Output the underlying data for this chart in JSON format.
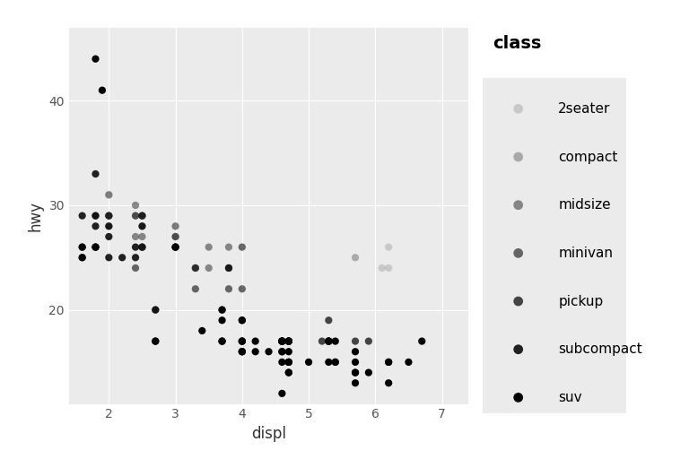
{
  "title": "class",
  "xlabel": "displ",
  "ylabel": "hwy",
  "plot_bg_color": "#EBEBEB",
  "fig_bg_color": "#FFFFFF",
  "legend_bg": "#EBEBEB",
  "classes": [
    "2seater",
    "compact",
    "midsize",
    "minivan",
    "pickup",
    "subcompact",
    "suv"
  ],
  "alpha_values": [
    0.15,
    0.28,
    0.43,
    0.57,
    0.71,
    0.86,
    1.0
  ],
  "point_color": "#000000",
  "point_size": 35,
  "xlim": [
    1.4,
    7.4
  ],
  "ylim": [
    11,
    47
  ],
  "xticks": [
    2,
    3,
    4,
    5,
    6,
    7
  ],
  "yticks": [
    20,
    30,
    40
  ],
  "data": {
    "2seater": {
      "displ": [
        5.7,
        5.7,
        6.1,
        6.2,
        6.2
      ],
      "hwy": [
        25,
        25,
        24,
        24,
        26
      ]
    },
    "compact": {
      "displ": [
        1.8,
        1.8,
        2.0,
        2.0,
        2.0,
        2.0,
        2.0,
        2.0,
        2.0,
        2.0,
        2.0,
        2.5,
        2.5,
        2.5,
        2.5,
        3.0,
        3.0,
        3.0
      ],
      "hwy": [
        29,
        29,
        31,
        29,
        28,
        29,
        29,
        29,
        29,
        31,
        29,
        28,
        29,
        26,
        26,
        28,
        26,
        28
      ]
    },
    "midsize": {
      "displ": [
        2.4,
        2.4,
        2.4,
        2.4,
        2.5,
        2.5,
        2.5,
        2.5,
        2.5,
        2.5,
        2.5,
        3.0,
        3.0,
        3.0,
        3.0,
        3.5,
        3.5,
        3.8,
        3.8
      ],
      "hwy": [
        30,
        29,
        27,
        29,
        29,
        29,
        29,
        26,
        26,
        26,
        27,
        27,
        26,
        27,
        26,
        26,
        24,
        26,
        24
      ]
    },
    "minivan": {
      "displ": [
        2.4,
        3.3,
        3.3,
        3.3,
        3.8,
        3.8,
        3.8,
        4.0,
        4.0
      ],
      "hwy": [
        24,
        24,
        22,
        24,
        22,
        24,
        24,
        22,
        26
      ]
    },
    "pickup": {
      "displ": [
        2.7,
        2.7,
        3.7,
        3.7,
        3.7,
        4.7,
        4.7,
        4.7,
        4.7,
        5.2,
        5.3,
        5.3,
        5.3,
        5.3,
        5.7,
        5.9
      ],
      "hwy": [
        20,
        20,
        20,
        17,
        17,
        17,
        17,
        17,
        17,
        17,
        19,
        17,
        17,
        17,
        17,
        17
      ]
    },
    "subcompact": {
      "displ": [
        1.6,
        1.6,
        1.6,
        1.6,
        1.6,
        1.8,
        1.8,
        1.8,
        1.8,
        1.8,
        1.8,
        2.0,
        2.0,
        2.0,
        2.2,
        2.4,
        2.4,
        2.5,
        3.0,
        3.0
      ],
      "hwy": [
        26,
        25,
        29,
        26,
        25,
        26,
        29,
        26,
        26,
        33,
        28,
        28,
        27,
        25,
        25,
        26,
        25,
        28,
        26,
        26
      ]
    },
    "suv": {
      "displ": [
        2.7,
        2.7,
        3.4,
        4.0,
        4.0,
        4.0,
        4.0,
        4.6,
        4.6,
        4.6,
        4.6,
        4.7,
        4.7,
        4.7,
        4.7,
        4.7,
        4.7,
        5.4,
        5.4,
        5.4,
        5.7,
        5.9,
        6.5,
        4.0,
        4.0,
        4.0,
        4.0,
        4.6,
        4.6,
        4.6,
        5.3,
        5.7,
        5.7,
        3.7,
        3.7,
        3.7,
        4.2,
        4.2,
        4.4,
        4.6,
        4.6,
        4.6,
        4.7,
        4.7,
        4.7,
        5.0,
        5.3,
        5.3,
        5.7,
        5.7,
        6.2,
        6.2,
        6.2,
        6.7,
        1.8,
        1.9
      ],
      "hwy": [
        17,
        17,
        18,
        16,
        17,
        16,
        17,
        17,
        17,
        17,
        16,
        17,
        17,
        15,
        15,
        14,
        14,
        15,
        15,
        17,
        14,
        14,
        15,
        19,
        19,
        17,
        16,
        17,
        17,
        12,
        17,
        14,
        13,
        20,
        19,
        17,
        17,
        16,
        16,
        15,
        16,
        17,
        15,
        17,
        16,
        15,
        17,
        15,
        16,
        15,
        15,
        15,
        13,
        17,
        44,
        41
      ]
    }
  }
}
